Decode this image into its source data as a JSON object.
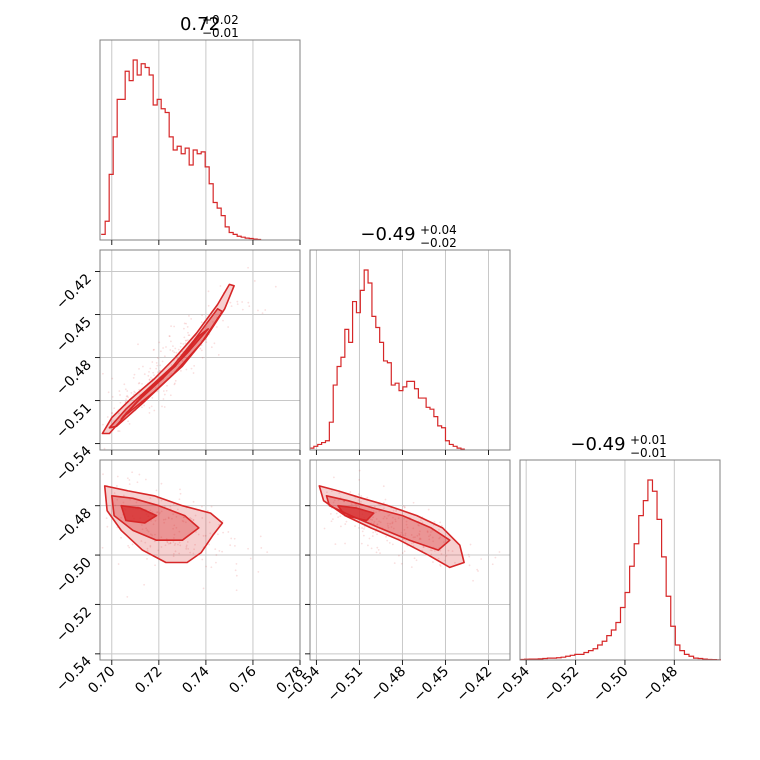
{
  "chart_data": {
    "type": "corner",
    "color": "#d62728",
    "grid": true,
    "parameters": [
      {
        "title": {
          "median": "0.72",
          "plus": "+0.02",
          "minus": "−0.01"
        },
        "range": [
          0.695,
          0.78
        ],
        "ticks": [
          0.7,
          0.72,
          0.74,
          0.76,
          0.78
        ],
        "tick_labels": [
          "0.70",
          "0.72",
          "0.74",
          "0.76",
          "0.78"
        ]
      },
      {
        "title": {
          "median": "−0.49",
          "plus": "+0.04",
          "minus": "−0.02"
        },
        "range": [
          -0.5445,
          -0.405
        ],
        "ticks": [
          -0.54,
          -0.51,
          -0.48,
          -0.45,
          -0.42
        ],
        "tick_labels": [
          "−0.54",
          "−0.51",
          "−0.48",
          "−0.45",
          "−0.42"
        ]
      },
      {
        "title": {
          "median": "−0.49",
          "plus": "+0.01",
          "minus": "−0.01"
        },
        "range": [
          -0.5425,
          -0.4615
        ],
        "ticks": [
          -0.54,
          -0.52,
          -0.5,
          -0.48
        ],
        "tick_labels": [
          "−0.54",
          "−0.52",
          "−0.50",
          "−0.48"
        ]
      }
    ],
    "histograms": [
      {
        "param": 0,
        "bin_start": 0.6955,
        "bin_width": 0.0017,
        "counts": [
          0.03,
          0.1,
          0.35,
          0.55,
          0.75,
          0.75,
          0.9,
          0.85,
          0.96,
          0.88,
          0.94,
          0.92,
          0.88,
          0.72,
          0.75,
          0.7,
          0.68,
          0.55,
          0.48,
          0.5,
          0.46,
          0.49,
          0.4,
          0.48,
          0.46,
          0.47,
          0.39,
          0.3,
          0.2,
          0.17,
          0.13,
          0.07,
          0.04,
          0.03,
          0.02,
          0.015,
          0.01,
          0.008,
          0.005,
          0.003
        ]
      },
      {
        "param": 1,
        "bin_start": -0.5445,
        "bin_width": 0.0027,
        "counts": [
          0.01,
          0.02,
          0.03,
          0.04,
          0.05,
          0.15,
          0.35,
          0.45,
          0.5,
          0.65,
          0.58,
          0.8,
          0.74,
          0.86,
          0.97,
          0.9,
          0.72,
          0.66,
          0.58,
          0.48,
          0.47,
          0.35,
          0.36,
          0.32,
          0.34,
          0.37,
          0.37,
          0.33,
          0.28,
          0.28,
          0.23,
          0.22,
          0.18,
          0.13,
          0.12,
          0.05,
          0.03,
          0.02,
          0.01,
          0.005
        ]
      },
      {
        "param": 2,
        "bin_start": -0.5425,
        "bin_width": 0.00185,
        "counts": [
          0.003,
          0.004,
          0.005,
          0.005,
          0.006,
          0.008,
          0.01,
          0.01,
          0.012,
          0.015,
          0.02,
          0.025,
          0.03,
          0.03,
          0.04,
          0.05,
          0.06,
          0.08,
          0.1,
          0.13,
          0.16,
          0.2,
          0.28,
          0.36,
          0.5,
          0.62,
          0.77,
          0.85,
          0.96,
          0.9,
          0.75,
          0.55,
          0.34,
          0.18,
          0.08,
          0.05,
          0.03,
          0.02,
          0.01,
          0.008,
          0.005,
          0.003,
          0.002,
          0.001
        ]
      }
    ],
    "contour_panels": [
      {
        "x_param": 0,
        "y_param": 1,
        "regions": [
          {
            "level": "outer",
            "points": [
              [
                0.696,
                -0.533
              ],
              [
                0.7,
                -0.522
              ],
              [
                0.708,
                -0.509
              ],
              [
                0.718,
                -0.495
              ],
              [
                0.727,
                -0.48
              ],
              [
                0.736,
                -0.463
              ],
              [
                0.745,
                -0.443
              ],
              [
                0.75,
                -0.429
              ],
              [
                0.752,
                -0.43
              ],
              [
                0.748,
                -0.446
              ],
              [
                0.74,
                -0.466
              ],
              [
                0.73,
                -0.486
              ],
              [
                0.718,
                -0.504
              ],
              [
                0.706,
                -0.52
              ],
              [
                0.699,
                -0.533
              ]
            ]
          },
          {
            "level": "middle",
            "points": [
              [
                0.699,
                -0.529
              ],
              [
                0.706,
                -0.516
              ],
              [
                0.716,
                -0.501
              ],
              [
                0.726,
                -0.486
              ],
              [
                0.735,
                -0.468
              ],
              [
                0.745,
                -0.446
              ],
              [
                0.747,
                -0.448
              ],
              [
                0.738,
                -0.47
              ],
              [
                0.726,
                -0.492
              ],
              [
                0.713,
                -0.512
              ],
              [
                0.702,
                -0.528
              ]
            ]
          },
          {
            "level": "inner",
            "points": [
              [
                0.704,
                -0.523
              ],
              [
                0.712,
                -0.509
              ],
              [
                0.722,
                -0.494
              ],
              [
                0.732,
                -0.477
              ],
              [
                0.741,
                -0.46
              ],
              [
                0.737,
                -0.465
              ],
              [
                0.727,
                -0.486
              ],
              [
                0.714,
                -0.505
              ],
              [
                0.705,
                -0.521
              ]
            ]
          }
        ],
        "scatter_cloud": {
          "center": [
            0.722,
            -0.488
          ],
          "slope": 1.55,
          "spread_along": 0.032,
          "spread_across": 0.006,
          "count": 260
        }
      },
      {
        "x_param": 0,
        "y_param": 2,
        "regions": [
          {
            "level": "outer",
            "points": [
              [
                0.697,
                -0.472
              ],
              [
                0.707,
                -0.474
              ],
              [
                0.718,
                -0.476
              ],
              [
                0.73,
                -0.48
              ],
              [
                0.742,
                -0.483
              ],
              [
                0.747,
                -0.487
              ],
              [
                0.743,
                -0.492
              ],
              [
                0.738,
                -0.499
              ],
              [
                0.732,
                -0.503
              ],
              [
                0.723,
                -0.503
              ],
              [
                0.713,
                -0.498
              ],
              [
                0.704,
                -0.49
              ],
              [
                0.698,
                -0.482
              ]
            ]
          },
          {
            "level": "middle",
            "points": [
              [
                0.7,
                -0.476
              ],
              [
                0.709,
                -0.477
              ],
              [
                0.72,
                -0.48
              ],
              [
                0.731,
                -0.484
              ],
              [
                0.737,
                -0.489
              ],
              [
                0.73,
                -0.494
              ],
              [
                0.719,
                -0.494
              ],
              [
                0.709,
                -0.49
              ],
              [
                0.701,
                -0.484
              ]
            ]
          },
          {
            "level": "inner",
            "points": [
              [
                0.704,
                -0.48
              ],
              [
                0.712,
                -0.481
              ],
              [
                0.719,
                -0.484
              ],
              [
                0.714,
                -0.487
              ],
              [
                0.706,
                -0.486
              ]
            ]
          }
        ],
        "scatter_cloud": {
          "center": [
            0.722,
            -0.488
          ],
          "slope": -0.35,
          "spread_along": 0.022,
          "spread_across": 0.008,
          "count": 220
        }
      },
      {
        "x_param": 1,
        "y_param": 2,
        "regions": [
          {
            "level": "outer",
            "points": [
              [
                -0.538,
                -0.472
              ],
              [
                -0.525,
                -0.474
              ],
              [
                -0.508,
                -0.477
              ],
              [
                -0.49,
                -0.48
              ],
              [
                -0.47,
                -0.484
              ],
              [
                -0.452,
                -0.489
              ],
              [
                -0.44,
                -0.496
              ],
              [
                -0.437,
                -0.503
              ],
              [
                -0.447,
                -0.505
              ],
              [
                -0.462,
                -0.5
              ],
              [
                -0.482,
                -0.494
              ],
              [
                -0.502,
                -0.489
              ],
              [
                -0.52,
                -0.484
              ],
              [
                -0.535,
                -0.478
              ]
            ]
          },
          {
            "level": "middle",
            "points": [
              [
                -0.533,
                -0.476
              ],
              [
                -0.518,
                -0.478
              ],
              [
                -0.5,
                -0.481
              ],
              [
                -0.48,
                -0.484
              ],
              [
                -0.46,
                -0.489
              ],
              [
                -0.447,
                -0.494
              ],
              [
                -0.455,
                -0.498
              ],
              [
                -0.475,
                -0.494
              ],
              [
                -0.496,
                -0.489
              ],
              [
                -0.516,
                -0.484
              ],
              [
                -0.531,
                -0.48
              ]
            ]
          },
          {
            "level": "inner",
            "points": [
              [
                -0.525,
                -0.48
              ],
              [
                -0.512,
                -0.481
              ],
              [
                -0.5,
                -0.483
              ],
              [
                -0.505,
                -0.486
              ],
              [
                -0.52,
                -0.484
              ]
            ]
          }
        ],
        "scatter_cloud": {
          "center": [
            -0.488,
            -0.488
          ],
          "slope": -0.22,
          "spread_along": 0.028,
          "spread_across": 0.006,
          "count": 240
        }
      }
    ]
  }
}
